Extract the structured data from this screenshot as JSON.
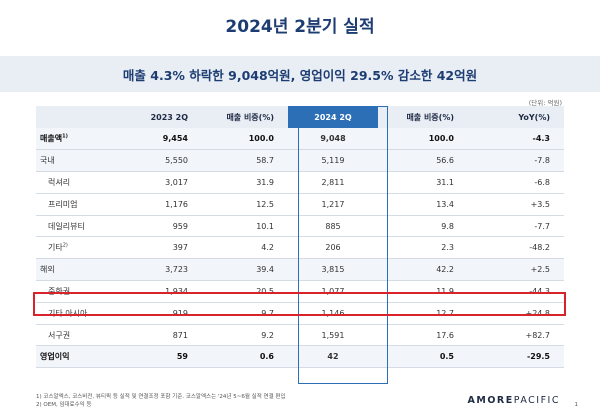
{
  "title": "2024년 2분기 실적",
  "subtitle": "매출 4.3% 하락한 9,048억원, 영업이익 29.5% 감소한 42억원",
  "unit": "(단위: 억원)",
  "table": {
    "headers": [
      "",
      "2023 2Q",
      "매출 비중(%)",
      "2024 2Q",
      "매출 비중(%)",
      "YoY(%)"
    ],
    "rows": [
      {
        "label": "매출액",
        "sup": "1)",
        "cells": [
          "9,454",
          "100.0",
          "9,048",
          "100.0",
          "-4.3"
        ]
      },
      {
        "label": "국내",
        "sup": "",
        "cells": [
          "5,550",
          "58.7",
          "5,119",
          "56.6",
          "-7.8"
        ]
      },
      {
        "label": "럭셔리",
        "sup": "",
        "cells": [
          "3,017",
          "31.9",
          "2,811",
          "31.1",
          "-6.8"
        ]
      },
      {
        "label": "프리미엄",
        "sup": "",
        "cells": [
          "1,176",
          "12.5",
          "1,217",
          "13.4",
          "+3.5"
        ]
      },
      {
        "label": "데일리뷰티",
        "sup": "",
        "cells": [
          "959",
          "10.1",
          "885",
          "9.8",
          "-7.7"
        ]
      },
      {
        "label": "기타",
        "sup": "2)",
        "cells": [
          "397",
          "4.2",
          "206",
          "2.3",
          "-48.2"
        ]
      },
      {
        "label": "해외",
        "sup": "",
        "cells": [
          "3,723",
          "39.4",
          "3,815",
          "42.2",
          "+2.5"
        ]
      },
      {
        "label": "중화권",
        "sup": "",
        "cells": [
          "1,934",
          "20.5",
          "1,077",
          "11.9",
          "-44.3"
        ]
      },
      {
        "label": "기타 아시아",
        "sup": "",
        "cells": [
          "919",
          "9.7",
          "1,146",
          "12.7",
          "+24.8"
        ]
      },
      {
        "label": "서구권",
        "sup": "",
        "cells": [
          "871",
          "9.2",
          "1,591",
          "17.6",
          "+82.7"
        ]
      },
      {
        "label": "영업이익",
        "sup": "",
        "cells": [
          "59",
          "0.6",
          "42",
          "0.5",
          "-29.5"
        ]
      }
    ]
  },
  "footnotes": [
    "1) 코스알엑스, 코스비전, 뷰티퀵 등 실적 및 연결조정 포함 기준. 코스알엑스는 '24년 5~6월 실적 연결 편입",
    "2) OEM, 임대료수익 등"
  ],
  "logo": {
    "part1": "AMORE",
    "part2": "PACIFIC"
  },
  "page_number": "1"
}
